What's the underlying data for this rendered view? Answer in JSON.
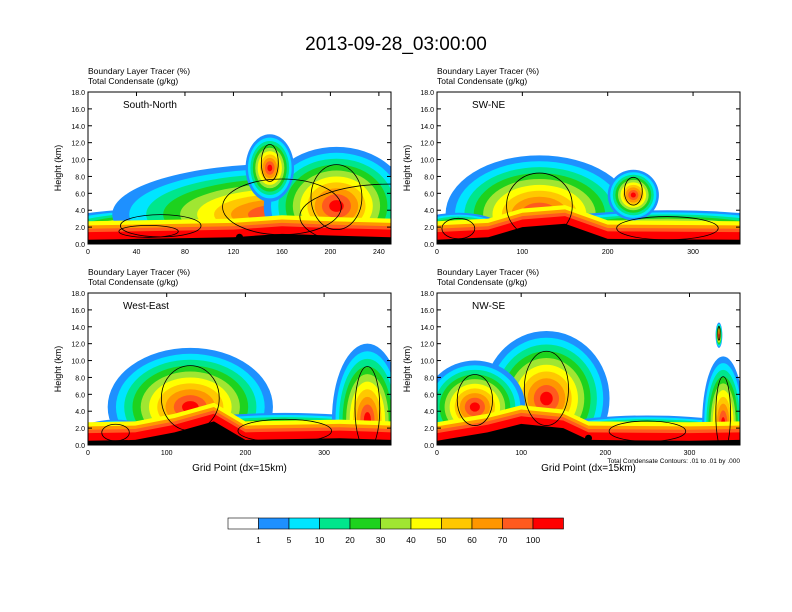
{
  "chart_data": {
    "type": "vertical-cross-section-panels",
    "title": "2013-09-28_03:00:00",
    "shared_xlabel": "Grid Point (dx=15km)",
    "shared_ylabel": "Height (km)",
    "field_label": "Boundary Layer Tracer   (%)",
    "contour_label": "Total Condensate   (g/kg)",
    "contour_note": "Total Condensate Contours: .01 to .01 by .000",
    "ylim": [
      0,
      18
    ],
    "yticks": [
      "0.0",
      "2.0",
      "4.0",
      "6.0",
      "8.0",
      "10.0",
      "12.0",
      "14.0",
      "16.0",
      "18.0"
    ],
    "colorbar": {
      "labels": [
        "1",
        "5",
        "10",
        "20",
        "30",
        "40",
        "50",
        "60",
        "70",
        "100"
      ],
      "colors": [
        "#ffffff",
        "#1e90ff",
        "#00e5ff",
        "#00e68c",
        "#1ed21e",
        "#a0e632",
        "#ffff00",
        "#ffc800",
        "#ff9600",
        "#ff5a1e",
        "#ff0000"
      ]
    },
    "panels": [
      {
        "label": "South-North",
        "xlim": [
          0,
          250
        ],
        "xticks": [
          0,
          40,
          80,
          120,
          160,
          200,
          240
        ],
        "marker_x": 125,
        "show_xlabel": false,
        "show_note": false,
        "terrain": [
          [
            0,
            0.5
          ],
          [
            40,
            0.6
          ],
          [
            80,
            0.7
          ],
          [
            120,
            0.8
          ],
          [
            160,
            1.2
          ],
          [
            200,
            1.0
          ],
          [
            250,
            0.8
          ]
        ],
        "blobs": [
          [
            60,
            1.8,
            95,
            2.4,
            0.35
          ],
          [
            250,
            2.2,
            215,
            7,
            0.6
          ],
          [
            160,
            3.5,
            140,
            6,
            0.55
          ],
          [
            205,
            4.5,
            60,
            7,
            0.35
          ],
          [
            150,
            9,
            20,
            4,
            0.05
          ],
          [
            50,
            1.3,
            70,
            1.3,
            0.25
          ]
        ]
      },
      {
        "label": "SW-NE",
        "xlim": [
          0,
          355
        ],
        "xticks": [
          0,
          100,
          200,
          300
        ],
        "marker_x": 180,
        "show_xlabel": false,
        "show_note": false,
        "terrain": [
          [
            0,
            0.5
          ],
          [
            60,
            0.8
          ],
          [
            100,
            2.0
          ],
          [
            150,
            2.4
          ],
          [
            200,
            0.6
          ],
          [
            355,
            0.5
          ]
        ],
        "blobs": [
          [
            120,
            3.5,
            110,
            7,
            0.55
          ],
          [
            270,
            1.5,
            170,
            2.5,
            0.25
          ],
          [
            25,
            1.5,
            55,
            2.2,
            0.25
          ],
          [
            230,
            5.8,
            30,
            3,
            0.25
          ]
        ]
      },
      {
        "label": "West-East",
        "xlim": [
          0,
          385
        ],
        "xticks": [
          0,
          100,
          200,
          300
        ],
        "marker_x": 185,
        "show_xlabel": true,
        "show_note": false,
        "terrain": [
          [
            0,
            0.5
          ],
          [
            60,
            0.6
          ],
          [
            110,
            1.5
          ],
          [
            160,
            2.8
          ],
          [
            200,
            0.6
          ],
          [
            320,
            0.8
          ],
          [
            385,
            0.6
          ]
        ],
        "blobs": [
          [
            130,
            4.5,
            105,
            7,
            0.55
          ],
          [
            250,
            1.3,
            170,
            2.5,
            0.25
          ],
          [
            355,
            3,
            45,
            9,
            0.3
          ],
          [
            35,
            1.2,
            50,
            1.8,
            0.25
          ]
        ]
      },
      {
        "label": "NW-SE",
        "xlim": [
          0,
          360
        ],
        "xticks": [
          0,
          100,
          200,
          300
        ],
        "marker_x": 180,
        "show_xlabel": true,
        "show_note": true,
        "terrain": [
          [
            0,
            0.5
          ],
          [
            60,
            1.5
          ],
          [
            100,
            2.5
          ],
          [
            150,
            2.0
          ],
          [
            180,
            0.6
          ],
          [
            300,
            0.5
          ],
          [
            360,
            0.6
          ]
        ],
        "blobs": [
          [
            130,
            5.5,
            75,
            8,
            0.55
          ],
          [
            45,
            4.5,
            60,
            5.5,
            0.45
          ],
          [
            250,
            1.3,
            130,
            2.2,
            0.25
          ],
          [
            340,
            2.5,
            25,
            8,
            0.3
          ],
          [
            335,
            13,
            4,
            1.5,
            0.05
          ]
        ]
      }
    ]
  }
}
